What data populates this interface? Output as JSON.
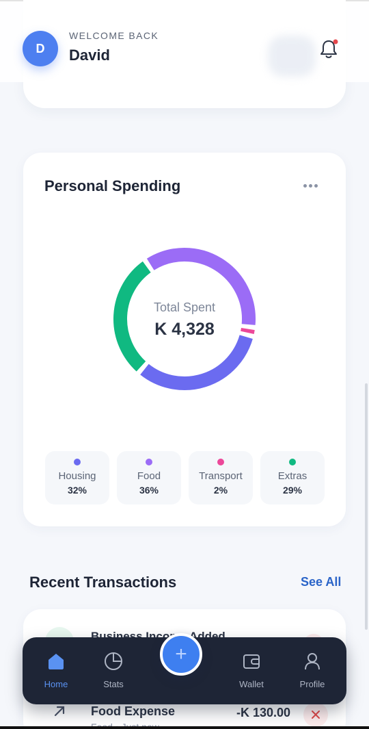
{
  "header": {
    "avatar_initial": "D",
    "welcome": "WELCOME BACK",
    "username": "David"
  },
  "spending": {
    "title": "Personal Spending",
    "center_label": "Total Spent",
    "center_value": "K 4,328",
    "categories": [
      {
        "name": "Housing",
        "percent_label": "32%",
        "color": "#6b6bf0"
      },
      {
        "name": "Food",
        "percent_label": "36%",
        "color": "#9b6cf6"
      },
      {
        "name": "Transport",
        "percent_label": "2%",
        "color": "#ec4899"
      },
      {
        "name": "Extras",
        "percent_label": "29%",
        "color": "#10b981"
      }
    ]
  },
  "chart_data": {
    "type": "pie",
    "categories": [
      "Food",
      "Transport",
      "Housing",
      "Extras"
    ],
    "values": [
      36,
      2,
      32,
      29
    ],
    "colors": [
      "#9b6cf6",
      "#ec4899",
      "#6b6bf0",
      "#10b981"
    ],
    "title": ""
  },
  "recent": {
    "title": "Recent Transactions",
    "see_all": "See All",
    "items": [
      {
        "title": "Business Income Added"
      },
      {
        "title": "Food Expense",
        "subtitle": "Food • Just now",
        "amount": "-K 130.00"
      }
    ]
  },
  "nav": {
    "items": [
      {
        "label": "Home",
        "icon": "home-icon",
        "active": true
      },
      {
        "label": "Stats",
        "icon": "pie-chart-icon"
      },
      {
        "label": "Wallet",
        "icon": "wallet-icon"
      },
      {
        "label": "Profile",
        "icon": "user-icon"
      }
    ],
    "fab_symbol": "+"
  },
  "colors": {
    "accent": "#3e7ff0",
    "nav_bg": "#1e2536",
    "notification_dot": "#e5484d"
  }
}
